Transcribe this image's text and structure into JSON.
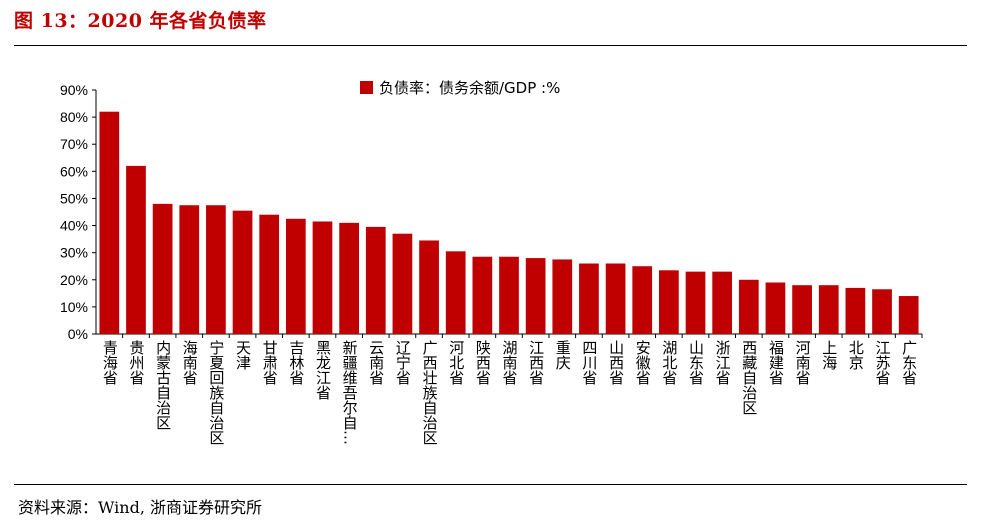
{
  "figure": {
    "title": "图 13：2020 年各省负债率",
    "source": "资料来源：Wind, 浙商证券研究所"
  },
  "colors": {
    "bar": "#c00000",
    "axis": "#000000"
  },
  "chart_data": {
    "type": "bar",
    "ylim": [
      0,
      90
    ],
    "yticks": [
      "0%",
      "10%",
      "20%",
      "30%",
      "40%",
      "50%",
      "60%",
      "70%",
      "80%",
      "90%"
    ],
    "legend": {
      "position": "top-center"
    },
    "grid": false,
    "categories": [
      "青海省",
      "贵州省",
      "内蒙古自治区",
      "海南省",
      "宁夏回族自治区",
      "天津",
      "甘肃省",
      "吉林省",
      "黑龙江省",
      "新疆维吾尔自…",
      "云南省",
      "辽宁省",
      "广西壮族自治区",
      "河北省",
      "陕西省",
      "湖南省",
      "江西省",
      "重庆",
      "四川省",
      "山西省",
      "安徽省",
      "湖北省",
      "山东省",
      "浙江省",
      "西藏自治区",
      "福建省",
      "河南省",
      "上海",
      "北京",
      "江苏省",
      "广东省"
    ],
    "series": [
      {
        "name": "负债率：债务余额/GDP :%",
        "values": [
          82,
          62,
          48,
          47.5,
          47.5,
          45.5,
          44,
          42.5,
          41.5,
          41,
          39.5,
          37,
          34.5,
          30.5,
          28.5,
          28.5,
          28,
          27.5,
          26,
          26,
          25,
          23.5,
          23,
          23,
          20,
          19,
          18,
          18,
          17,
          16.5,
          14
        ]
      }
    ]
  }
}
